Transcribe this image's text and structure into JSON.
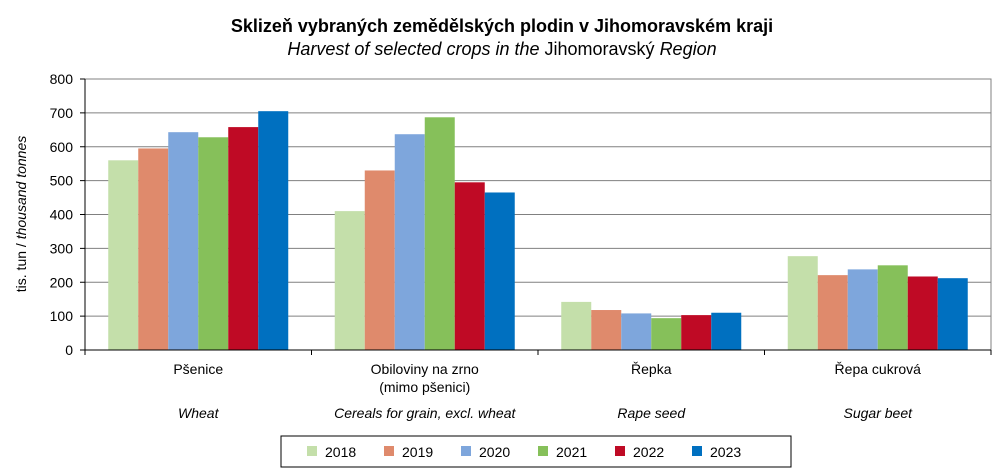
{
  "chart_data": {
    "type": "bar",
    "title": "Sklizeň vybraných zemědělských plodin v Jihomoravském kraji",
    "subtitle_italic": "Harvest of selected crops in the",
    "subtitle_region": "Jihomoravský",
    "subtitle_end": "Region",
    "ylabel_cz": "tis. tun /",
    "ylabel_en": "thousand tonnes",
    "ylim": [
      0,
      800
    ],
    "yticks": [
      "0",
      "100",
      "200",
      "300",
      "400",
      "500",
      "600",
      "700",
      "800"
    ],
    "grid": true,
    "legend_position": "bottom",
    "categories": [
      {
        "cz": "Pšenice",
        "cz2": "",
        "en": "Wheat"
      },
      {
        "cz": "Obiloviny na zrno",
        "cz2": "(mimo pšenici)",
        "en": "Cereals for grain, excl. wheat"
      },
      {
        "cz": "Řepka",
        "cz2": "",
        "en": "Rape seed"
      },
      {
        "cz": "Řepa cukrová",
        "cz2": "",
        "en": "Sugar beet"
      }
    ],
    "series": [
      {
        "name": "2018",
        "color": "#c4dfaa",
        "values": [
          560,
          410,
          142,
          277
        ]
      },
      {
        "name": "2019",
        "color": "#df8a6c",
        "values": [
          595,
          530,
          118,
          221
        ]
      },
      {
        "name": "2020",
        "color": "#7ea6dc",
        "values": [
          643,
          637,
          108,
          238
        ]
      },
      {
        "name": "2021",
        "color": "#86c05a",
        "values": [
          628,
          687,
          94,
          250
        ]
      },
      {
        "name": "2022",
        "color": "#bf0a25",
        "values": [
          658,
          495,
          103,
          217
        ]
      },
      {
        "name": "2023",
        "color": "#0070c0",
        "values": [
          705,
          465,
          110,
          212
        ]
      }
    ]
  }
}
